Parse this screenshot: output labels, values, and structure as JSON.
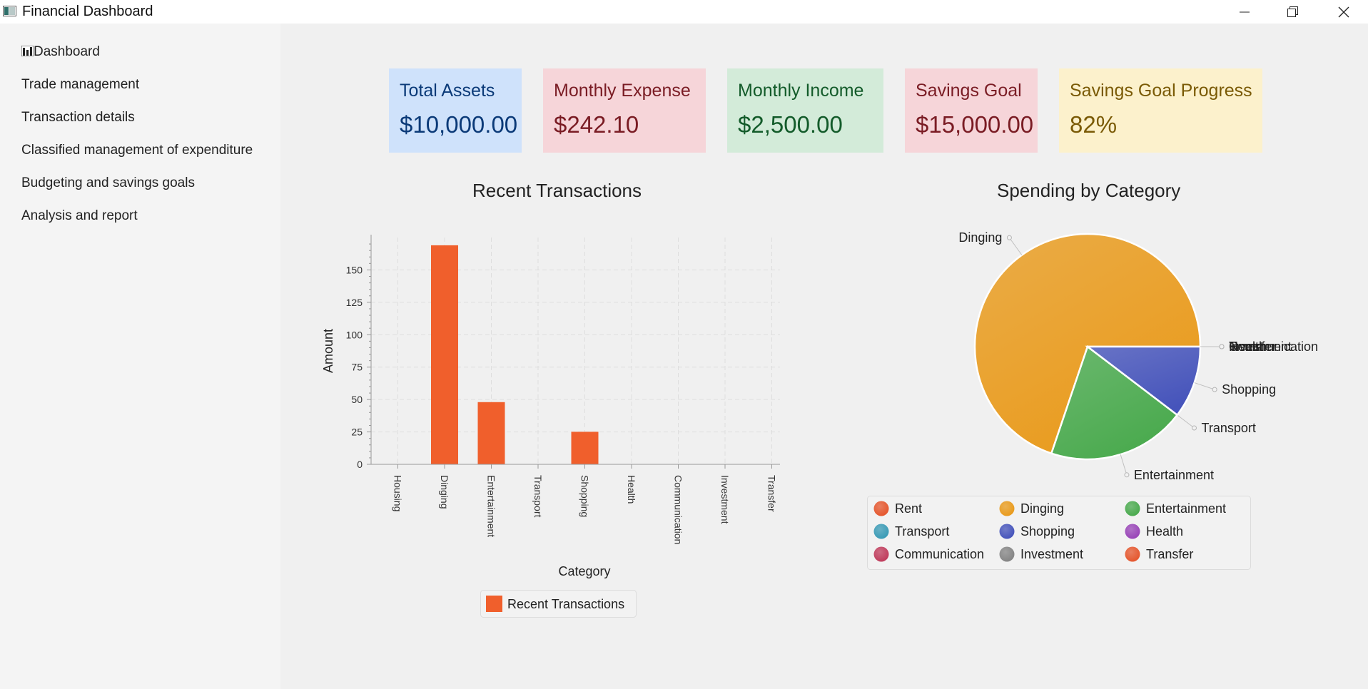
{
  "window": {
    "title": "Financial Dashboard"
  },
  "sidebar": {
    "items": [
      {
        "label": "Dashboard",
        "icon": "chart-icon"
      },
      {
        "label": "Trade management"
      },
      {
        "label": "Transaction details"
      },
      {
        "label": "Classified management of expenditure"
      },
      {
        "label": "Budgeting and savings goals"
      },
      {
        "label": "Analysis and report"
      }
    ]
  },
  "cards": [
    {
      "label": "Total Assets",
      "value": "$10,000.00",
      "bg": "#cfe2fb",
      "color": "#0b3a78"
    },
    {
      "label": "Monthly Expense",
      "value": "$242.10",
      "bg": "#f6d5d9",
      "color": "#7a1c24"
    },
    {
      "label": "Monthly Income",
      "value": "$2,500.00",
      "bg": "#d3ebd9",
      "color": "#135b2a"
    },
    {
      "label": "Savings Goal",
      "value": "$15,000.00",
      "bg": "#f6d5d9",
      "color": "#7a1c24"
    },
    {
      "label": "Savings Goal Progress",
      "value": "82%",
      "bg": "#fcf1cc",
      "color": "#7a5a05"
    }
  ],
  "bar_chart": {
    "title": "Recent Transactions",
    "chart_data": {
      "type": "bar",
      "categories": [
        "Housing",
        "Dinging",
        "Entertainment",
        "Transport",
        "Shopping",
        "Health",
        "Communication",
        "Investment",
        "Transfer"
      ],
      "values": [
        0,
        169,
        48,
        0,
        25.1,
        0,
        0,
        0,
        0
      ],
      "xlabel": "Category",
      "ylabel": "Amount",
      "ylim": [
        0,
        175
      ],
      "yticks": [
        0,
        25,
        50,
        75,
        100,
        125,
        150
      ],
      "grid": true,
      "legend": "bottom",
      "series": [
        {
          "name": "Recent Transactions",
          "color": "#f05f2c"
        }
      ]
    }
  },
  "pie_chart": {
    "title": "Spending by Category",
    "chart_data": {
      "type": "pie",
      "slices": [
        {
          "label": "Rent",
          "value": 0,
          "color": "#e5572e"
        },
        {
          "label": "Dinging",
          "value": 169,
          "color": "#e99b1d"
        },
        {
          "label": "Entertainment",
          "value": 48,
          "color": "#4aaa4e"
        },
        {
          "label": "Transport",
          "value": 0,
          "color": "#3a9bb6"
        },
        {
          "label": "Shopping",
          "value": 25.1,
          "color": "#4654bb"
        },
        {
          "label": "Health",
          "value": 0,
          "color": "#9945b8"
        },
        {
          "label": "Communication",
          "value": 0,
          "color": "#c03c5c"
        },
        {
          "label": "Investment",
          "value": 0,
          "color": "#858585"
        },
        {
          "label": "Transfer",
          "value": 0,
          "color": "#e5572e"
        }
      ],
      "legend": "bottom"
    }
  }
}
